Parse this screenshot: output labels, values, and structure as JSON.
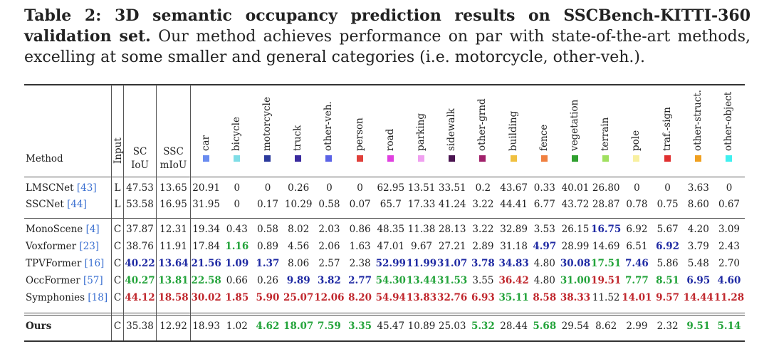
{
  "caption": {
    "label": "Table 2: 3D semantic occupancy prediction results on SSCBench-KITTI-360 validation set.",
    "text": " Our method achieves performance on par with state-of-the-art methods, excelling at some smaller and general categories (i.e. motorcycle, other-veh.)."
  },
  "header": {
    "method": "Method",
    "input": "Input",
    "sc_line1": "SC",
    "sc_line2": "IoU",
    "ssc_line1": "SSC",
    "ssc_line2": "mIoU"
  },
  "classes": [
    {
      "name": "car",
      "color": "#6a8cf0"
    },
    {
      "name": "bicycle",
      "color": "#7fdde6"
    },
    {
      "name": "motorcycle",
      "color": "#2b3a9c"
    },
    {
      "name": "truck",
      "color": "#3a2a9e"
    },
    {
      "name": "other-veh.",
      "color": "#5b63e6"
    },
    {
      "name": "person",
      "color": "#e0403a"
    },
    {
      "name": "road",
      "color": "#e040e0"
    },
    {
      "name": "parking",
      "color": "#f0a0f0"
    },
    {
      "name": "sidewalk",
      "color": "#4a1450"
    },
    {
      "name": "other-grnd",
      "color": "#a0206a"
    },
    {
      "name": "building",
      "color": "#f0c040"
    },
    {
      "name": "fence",
      "color": "#f08040"
    },
    {
      "name": "vegetation",
      "color": "#30a030"
    },
    {
      "name": "terrain",
      "color": "#a0e060"
    },
    {
      "name": "pole",
      "color": "#f8f0a0"
    },
    {
      "name": "traf.-sign",
      "color": "#e03030"
    },
    {
      "name": "other-struct.",
      "color": "#f0a020"
    },
    {
      "name": "other-object",
      "color": "#40f0f0"
    }
  ],
  "rows": [
    {
      "method": "LMSCNet",
      "ref": "[43]",
      "input": "L",
      "values": [
        "47.53",
        "13.65",
        "20.91",
        "0",
        "0",
        "0.26",
        "0",
        "0",
        "62.95",
        "13.51",
        "33.51",
        "0.2",
        "43.67",
        "0.33",
        "40.01",
        "26.80",
        "0",
        "0",
        "3.63",
        "0"
      ],
      "styles": []
    },
    {
      "method": "SSCNet",
      "ref": "[44]",
      "input": "L",
      "values": [
        "53.58",
        "16.95",
        "31.95",
        "0",
        "0.17",
        "10.29",
        "0.58",
        "0.07",
        "65.7",
        "17.33",
        "41.24",
        "3.22",
        "44.41",
        "6.77",
        "43.72",
        "28.87",
        "0.78",
        "0.75",
        "8.60",
        "0.67"
      ],
      "styles": []
    },
    {
      "method": "MonoScene",
      "ref": "[4]",
      "input": "C",
      "values": [
        "37.87",
        "12.31",
        "19.34",
        "0.43",
        "0.58",
        "8.02",
        "2.03",
        "0.86",
        "48.35",
        "11.38",
        "28.13",
        "3.22",
        "32.89",
        "3.53",
        "26.15",
        "16.75",
        "6.92",
        "5.67",
        "4.20",
        "3.09"
      ],
      "styles": [
        "",
        "",
        "",
        "",
        "",
        "",
        "",
        "",
        "",
        "",
        "",
        "",
        "",
        "",
        "",
        "blue",
        "",
        "",
        "",
        ""
      ]
    },
    {
      "method": "Voxformer",
      "ref": "[23]",
      "input": "C",
      "values": [
        "38.76",
        "11.91",
        "17.84",
        "1.16",
        "0.89",
        "4.56",
        "2.06",
        "1.63",
        "47.01",
        "9.67",
        "27.21",
        "2.89",
        "31.18",
        "4.97",
        "28.99",
        "14.69",
        "6.51",
        "6.92",
        "3.79",
        "2.43"
      ],
      "styles": [
        "",
        "",
        "",
        "green",
        "",
        "",
        "",
        "",
        "",
        "",
        "",
        "",
        "",
        "blue",
        "",
        "",
        "",
        "blue",
        "",
        ""
      ]
    },
    {
      "method": "TPVFormer",
      "ref": "[16]",
      "input": "C",
      "values": [
        "40.22",
        "13.64",
        "21.56",
        "1.09",
        "1.37",
        "8.06",
        "2.57",
        "2.38",
        "52.99",
        "11.99",
        "31.07",
        "3.78",
        "34.83",
        "4.80",
        "30.08",
        "17.51",
        "7.46",
        "5.86",
        "5.48",
        "2.70"
      ],
      "styles": [
        "blue",
        "blue",
        "blue",
        "blue",
        "blue",
        "",
        "",
        "",
        "blue",
        "blue",
        "blue",
        "blue",
        "blue",
        "",
        "blue",
        "green",
        "blue",
        "",
        "",
        ""
      ]
    },
    {
      "method": "OccFormer",
      "ref": "[57]",
      "input": "C",
      "values": [
        "40.27",
        "13.81",
        "22.58",
        "0.66",
        "0.26",
        "9.89",
        "3.82",
        "2.77",
        "54.30",
        "13.44",
        "31.53",
        "3.55",
        "36.42",
        "4.80",
        "31.00",
        "19.51",
        "7.77",
        "8.51",
        "6.95",
        "4.60"
      ],
      "styles": [
        "green",
        "green",
        "green",
        "",
        "",
        "blue",
        "blue",
        "blue",
        "green",
        "green",
        "green",
        "",
        "red",
        "",
        "green",
        "red",
        "green",
        "green",
        "blue",
        "blue"
      ]
    },
    {
      "method": "Symphonies",
      "ref": "[18]",
      "input": "C",
      "values": [
        "44.12",
        "18.58",
        "30.02",
        "1.85",
        "5.90",
        "25.07",
        "12.06",
        "8.20",
        "54.94",
        "13.83",
        "32.76",
        "6.93",
        "35.11",
        "8.58",
        "38.33",
        "11.52",
        "14.01",
        "9.57",
        "14.44",
        "11.28"
      ],
      "styles": [
        "red",
        "red",
        "red",
        "red",
        "red",
        "red",
        "red",
        "red",
        "red",
        "red",
        "red",
        "red",
        "green",
        "red",
        "red",
        "",
        "red",
        "red",
        "red",
        "red"
      ]
    },
    {
      "method": "Ours",
      "ref": "",
      "input": "C",
      "values": [
        "35.38",
        "12.92",
        "18.93",
        "1.02",
        "4.62",
        "18.07",
        "7.59",
        "3.35",
        "45.47",
        "10.89",
        "25.03",
        "5.32",
        "28.44",
        "5.68",
        "29.54",
        "8.62",
        "2.99",
        "2.32",
        "9.51",
        "5.14"
      ],
      "styles": [
        "",
        "",
        "",
        "",
        "green",
        "green",
        "green",
        "green",
        "",
        "",
        "",
        "green",
        "",
        "green",
        "",
        "",
        "",
        "",
        "green",
        "green"
      ]
    }
  ],
  "colors": {
    "blue": "#1f2aa3",
    "green": "#23a33a",
    "red": "#c0272d",
    "ref_link": "#3a6fd0"
  }
}
